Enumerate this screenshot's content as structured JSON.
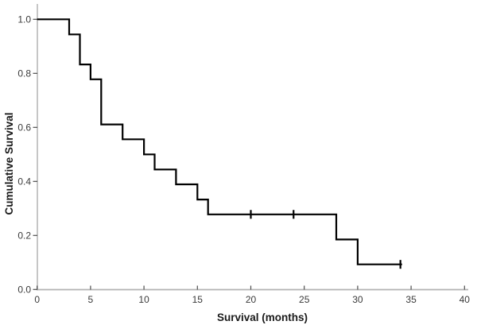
{
  "chart_data": {
    "type": "line",
    "subtype": "kaplan_meier_step",
    "title": "",
    "xlabel": "Survival (months)",
    "ylabel": "Cumulative Survival",
    "xlim": [
      0,
      40
    ],
    "ylim": [
      0.0,
      1.0
    ],
    "grid": false,
    "legend": "none",
    "x_ticks": [
      {
        "value": 0,
        "label": "0"
      },
      {
        "value": 5,
        "label": "5"
      },
      {
        "value": 10,
        "label": "10"
      },
      {
        "value": 15,
        "label": "15"
      },
      {
        "value": 20,
        "label": "20"
      },
      {
        "value": 25,
        "label": "25"
      },
      {
        "value": 30,
        "label": "30"
      },
      {
        "value": 35,
        "label": "35"
      },
      {
        "value": 40,
        "label": "40"
      }
    ],
    "y_ticks": [
      {
        "value": 0.0,
        "label": "0.0"
      },
      {
        "value": 0.2,
        "label": "0.2"
      },
      {
        "value": 0.4,
        "label": "0.4"
      },
      {
        "value": 0.6,
        "label": "0.6"
      },
      {
        "value": 0.8,
        "label": "0.8"
      },
      {
        "value": 1.0,
        "label": "1.0"
      }
    ],
    "series": [
      {
        "name": "cumulative-survival",
        "step_points": [
          {
            "x": 0,
            "y": 1.0
          },
          {
            "x": 3,
            "y": 0.944
          },
          {
            "x": 4,
            "y": 0.833
          },
          {
            "x": 5,
            "y": 0.778
          },
          {
            "x": 6,
            "y": 0.611
          },
          {
            "x": 8,
            "y": 0.556
          },
          {
            "x": 10,
            "y": 0.5
          },
          {
            "x": 11,
            "y": 0.444
          },
          {
            "x": 13,
            "y": 0.389
          },
          {
            "x": 15,
            "y": 0.333
          },
          {
            "x": 16,
            "y": 0.278
          },
          {
            "x": 28,
            "y": 0.185
          },
          {
            "x": 30,
            "y": 0.093
          }
        ],
        "curve_end_x": 34.15,
        "censor_marks": [
          {
            "x": 20,
            "y": 0.278
          },
          {
            "x": 24,
            "y": 0.278
          },
          {
            "x": 34,
            "y": 0.093
          }
        ]
      }
    ],
    "colors": {
      "curve": "#000000",
      "censor": "#000000",
      "axis_line": "#b3b3b3",
      "tick_mark": "#4d4d4d",
      "tick_text": "#3a3a3a",
      "axis_title_text": "#1a1a1a",
      "background": "#ffffff"
    }
  }
}
